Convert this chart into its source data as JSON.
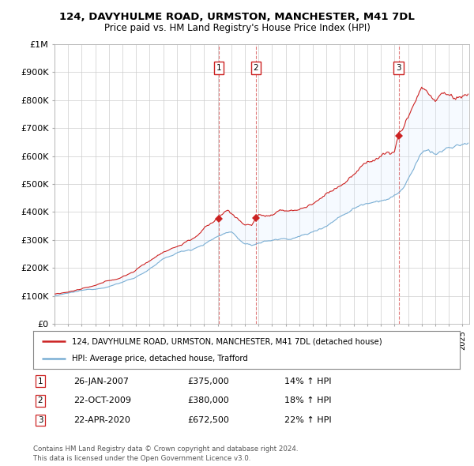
{
  "title": "124, DAVYHULME ROAD, URMSTON, MANCHESTER, M41 7DL",
  "subtitle": "Price paid vs. HM Land Registry's House Price Index (HPI)",
  "legend_line1": "124, DAVYHULME ROAD, URMSTON, MANCHESTER, M41 7DL (detached house)",
  "legend_line2": "HPI: Average price, detached house, Trafford",
  "footer1": "Contains HM Land Registry data © Crown copyright and database right 2024.",
  "footer2": "This data is licensed under the Open Government Licence v3.0.",
  "transactions": [
    {
      "num": 1,
      "date": "26-JAN-2007",
      "price": "£375,000",
      "hpi": "14% ↑ HPI",
      "x_year": 2007.08
    },
    {
      "num": 2,
      "date": "22-OCT-2009",
      "price": "£380,000",
      "hpi": "18% ↑ HPI",
      "x_year": 2009.81
    },
    {
      "num": 3,
      "date": "22-APR-2020",
      "price": "£672,500",
      "hpi": "22% ↑ HPI",
      "x_year": 2020.31
    }
  ],
  "sale_prices": [
    375000,
    380000,
    672500
  ],
  "hpi_line_color": "#7bafd4",
  "price_line_color": "#cc2222",
  "fill_color": "#ddeeff",
  "vline_color": "#cc2222",
  "background_color": "#ffffff",
  "grid_color": "#cccccc",
  "ylim": [
    0,
    1000000
  ],
  "xlim_start": 1995.0,
  "xlim_end": 2025.5
}
